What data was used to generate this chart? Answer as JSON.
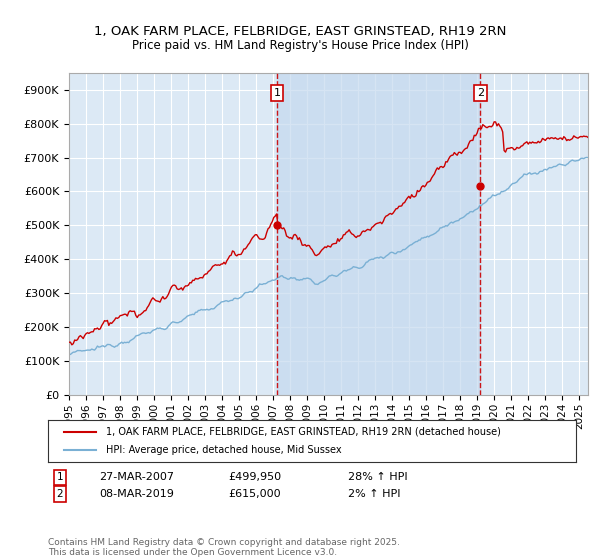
{
  "title1": "1, OAK FARM PLACE, FELBRIDGE, EAST GRINSTEAD, RH19 2RN",
  "title2": "Price paid vs. HM Land Registry's House Price Index (HPI)",
  "ylabel_ticks": [
    "£0",
    "£100K",
    "£200K",
    "£300K",
    "£400K",
    "£500K",
    "£600K",
    "£700K",
    "£800K",
    "£900K"
  ],
  "ytick_vals": [
    0,
    100000,
    200000,
    300000,
    400000,
    500000,
    600000,
    700000,
    800000,
    900000
  ],
  "ylim": [
    0,
    950000
  ],
  "xlim_start": 1995.0,
  "xlim_end": 2025.5,
  "bg_color": "#dce9f5",
  "shade_color": "#c5d9ef",
  "line1_color": "#cc0000",
  "line2_color": "#7ab0d4",
  "grid_color": "#ffffff",
  "transaction1_x": 2007.23,
  "transaction1_y": 499950,
  "transaction2_x": 2019.18,
  "transaction2_y": 615000,
  "transaction1_label": "27-MAR-2007",
  "transaction1_price": "£499,950",
  "transaction1_hpi": "28% ↑ HPI",
  "transaction2_label": "08-MAR-2019",
  "transaction2_price": "£615,000",
  "transaction2_hpi": "2% ↑ HPI",
  "legend_line1": "1, OAK FARM PLACE, FELBRIDGE, EAST GRINSTEAD, RH19 2RN (detached house)",
  "legend_line2": "HPI: Average price, detached house, Mid Sussex",
  "footnote": "Contains HM Land Registry data © Crown copyright and database right 2025.\nThis data is licensed under the Open Government Licence v3.0.",
  "xticks": [
    1995,
    1996,
    1997,
    1998,
    1999,
    2000,
    2001,
    2002,
    2003,
    2004,
    2005,
    2006,
    2007,
    2008,
    2009,
    2010,
    2011,
    2012,
    2013,
    2014,
    2015,
    2016,
    2017,
    2018,
    2019,
    2020,
    2021,
    2022,
    2023,
    2024,
    2025
  ]
}
